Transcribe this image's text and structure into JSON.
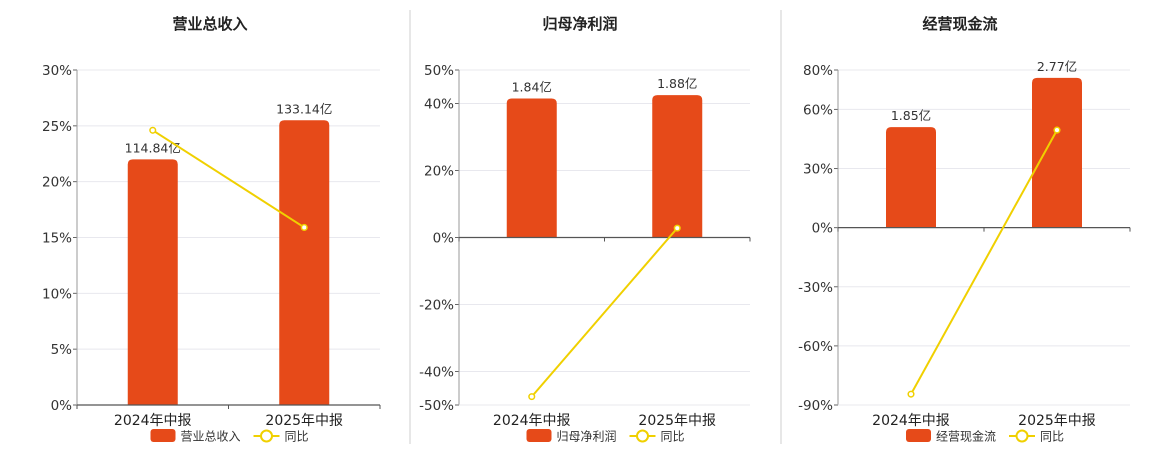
{
  "chart_data": [
    {
      "type": "bar",
      "title": "营业总收入",
      "categories": [
        "2024年中报",
        "2025年中报"
      ],
      "ylim": [
        0,
        30
      ],
      "y_ticks": [
        "0%",
        "5%",
        "10%",
        "15%",
        "20%",
        "25%",
        "30%"
      ],
      "y_tick_values": [
        0,
        5,
        10,
        15,
        20,
        25,
        30
      ],
      "series": [
        {
          "name": "营业总收入",
          "type": "bar",
          "values": [
            22,
            25.5
          ],
          "labels": [
            "114.84亿",
            "133.14亿"
          ],
          "color": "#e64a19"
        },
        {
          "name": "同比",
          "type": "line",
          "values": [
            24.6,
            15.9
          ],
          "color": "#f0d000"
        }
      ],
      "legend_position": "bottom",
      "grid": true
    },
    {
      "type": "bar",
      "title": "归母净利润",
      "categories": [
        "2024年中报",
        "2025年中报"
      ],
      "ylim": [
        -50,
        50
      ],
      "y_ticks": [
        "50%",
        "40%",
        "20%",
        "0%",
        "-20%",
        "-40%",
        "-50%"
      ],
      "y_tick_values": [
        50,
        40,
        20,
        0,
        -20,
        -40,
        -50
      ],
      "series": [
        {
          "name": "归母净利润",
          "type": "bar",
          "values": [
            41.5,
            42.5
          ],
          "labels": [
            "1.84亿",
            "1.88亿"
          ],
          "color": "#e64a19"
        },
        {
          "name": "同比",
          "type": "line",
          "values": [
            -47.5,
            2.8
          ],
          "color": "#f0d000"
        }
      ],
      "legend_position": "bottom",
      "grid": true
    },
    {
      "type": "bar",
      "title": "经营现金流",
      "categories": [
        "2024年中报",
        "2025年中报"
      ],
      "ylim": [
        -90,
        80
      ],
      "y_ticks": [
        "80%",
        "60%",
        "30%",
        "0%",
        "-30%",
        "-60%",
        "-90%"
      ],
      "y_tick_values": [
        80,
        60,
        30,
        0,
        -30,
        -60,
        -90
      ],
      "series": [
        {
          "name": "经营现金流",
          "type": "bar",
          "values": [
            51,
            76
          ],
          "labels": [
            "1.85亿",
            "2.77亿"
          ],
          "color": "#e64a19"
        },
        {
          "name": "同比",
          "type": "line",
          "values": [
            -84.5,
            49.5
          ],
          "color": "#f0d000"
        }
      ],
      "legend_position": "bottom",
      "grid": true
    }
  ]
}
